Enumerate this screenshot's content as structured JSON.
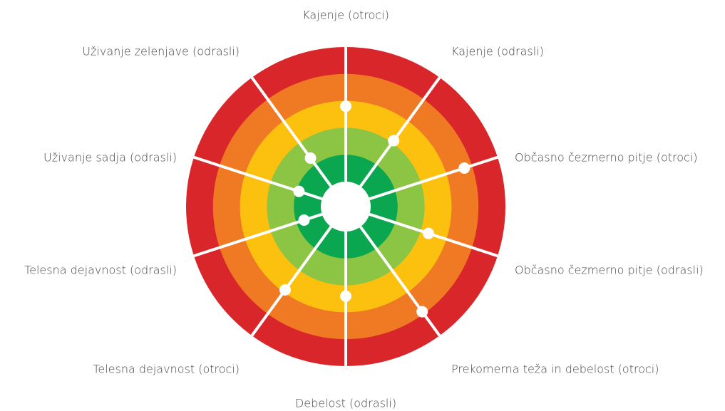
{
  "chart_data": {
    "type": "radial",
    "categories": [
      "Kajenje (otroci)",
      "Kajenje (odrasli)",
      "Občasno čezmerno pitje (otroci)",
      "Občasno čezmerno pitje (odrasli)",
      "Prekomerna teža in debelost (otroci)",
      "Debelost (odrasli)",
      "Telesna dejavnost (otroci)",
      "Telesna dejavnost (odrasli)",
      "Uživanje sadja (odrasli)",
      "Uživanje zelenjave (odrasli)"
    ],
    "values": [
      2.8,
      2.1,
      3.7,
      2.3,
      3.9,
      2.4,
      2.9,
      0.7,
      0.9,
      1.3
    ],
    "rlim": [
      0,
      5
    ],
    "ring_colors": [
      "#0aa650",
      "#8cc443",
      "#fcc10f",
      "#f07a23",
      "#d9262a"
    ]
  }
}
